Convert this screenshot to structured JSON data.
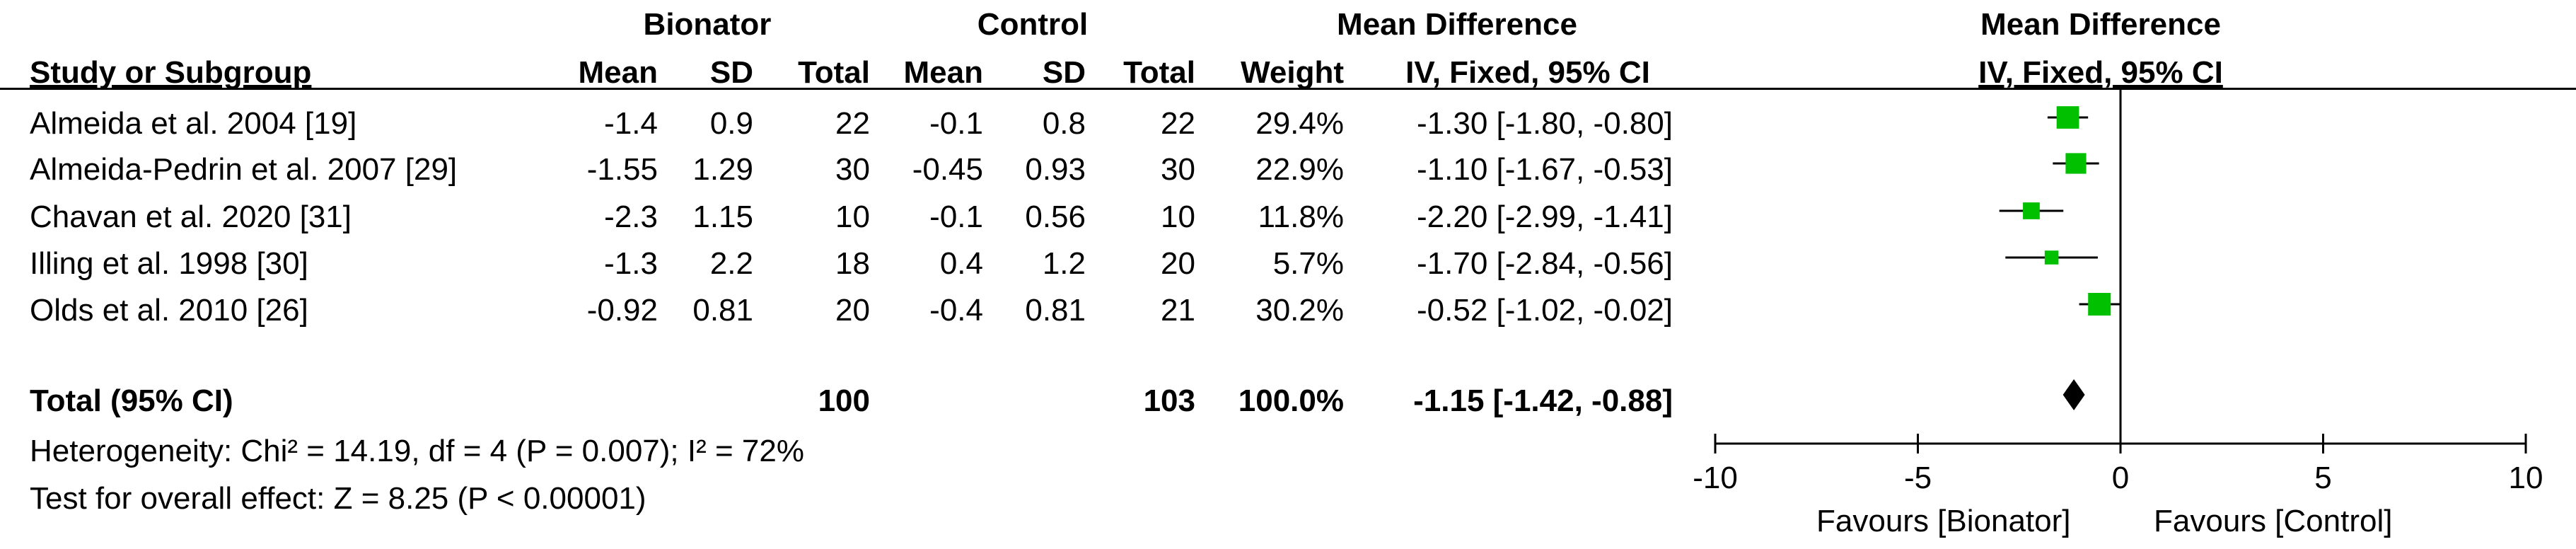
{
  "header": {
    "group1": "Bionator",
    "group2": "Control",
    "md_col": "Mean Difference",
    "plot_title": "Mean Difference",
    "study_col": "Study or Subgroup",
    "mean1": "Mean",
    "sd1": "SD",
    "total1": "Total",
    "mean2": "Mean",
    "sd2": "SD",
    "total2": "Total",
    "weight": "Weight",
    "method": "IV, Fixed, 95% CI",
    "plot_method": "IV, Fixed, 95% CI"
  },
  "studies": [
    {
      "name": "Almeida et al. 2004 [19]",
      "mean1": "-1.4",
      "sd1": "0.9",
      "n1": "22",
      "mean2": "-0.1",
      "sd2": "0.8",
      "n2": "22",
      "weight": "29.4%",
      "ci": "-1.30 [-1.80, -0.80]"
    },
    {
      "name": "Almeida-Pedrin et al. 2007 [29]",
      "mean1": "-1.55",
      "sd1": "1.29",
      "n1": "30",
      "mean2": "-0.45",
      "sd2": "0.93",
      "n2": "30",
      "weight": "22.9%",
      "ci": "-1.10 [-1.67, -0.53]"
    },
    {
      "name": "Chavan et al. 2020 [31]",
      "mean1": "-2.3",
      "sd1": "1.15",
      "n1": "10",
      "mean2": "-0.1",
      "sd2": "0.56",
      "n2": "10",
      "weight": "11.8%",
      "ci": "-2.20 [-2.99, -1.41]"
    },
    {
      "name": "Illing et al. 1998 [30]",
      "mean1": "-1.3",
      "sd1": "2.2",
      "n1": "18",
      "mean2": "0.4",
      "sd2": "1.2",
      "n2": "20",
      "weight": "5.7%",
      "ci": "-1.70 [-2.84, -0.56]"
    },
    {
      "name": "Olds et al. 2010 [26]",
      "mean1": "-0.92",
      "sd1": "0.81",
      "n1": "20",
      "mean2": "-0.4",
      "sd2": "0.81",
      "n2": "21",
      "weight": "30.2%",
      "ci": "-0.52 [-1.02, -0.02]"
    }
  ],
  "total": {
    "label": "Total (95% CI)",
    "n1": "100",
    "n2": "103",
    "weight": "100.0%",
    "ci": "-1.15 [-1.42, -0.88]"
  },
  "heterogeneity": "Heterogeneity: Chi² = 14.19, df = 4 (P = 0.007); I² = 72%",
  "overall_effect": "Test for overall effect: Z = 8.25 (P < 0.00001)",
  "favours_left": "Favours [Bionator]",
  "favours_right": "Favours [Control]",
  "colors": {
    "marker": "#00c000",
    "ink": "#000000"
  },
  "chart_data": {
    "type": "forest",
    "xlim": [
      -10,
      10
    ],
    "x_ticks": [
      -10,
      -5,
      0,
      5,
      10
    ],
    "tick_labels": [
      "-10",
      "-5",
      "0",
      "5",
      "10"
    ],
    "points": [
      {
        "md": -1.3,
        "lo": -1.8,
        "hi": -0.8,
        "weight": 29.4
      },
      {
        "md": -1.1,
        "lo": -1.67,
        "hi": -0.53,
        "weight": 22.9
      },
      {
        "md": -2.2,
        "lo": -2.99,
        "hi": -1.41,
        "weight": 11.8
      },
      {
        "md": -1.7,
        "lo": -2.84,
        "hi": -0.56,
        "weight": 5.7
      },
      {
        "md": -0.52,
        "lo": -1.02,
        "hi": -0.02,
        "weight": 30.2
      }
    ],
    "pooled": {
      "md": -1.15,
      "lo": -1.42,
      "hi": -0.88
    }
  }
}
